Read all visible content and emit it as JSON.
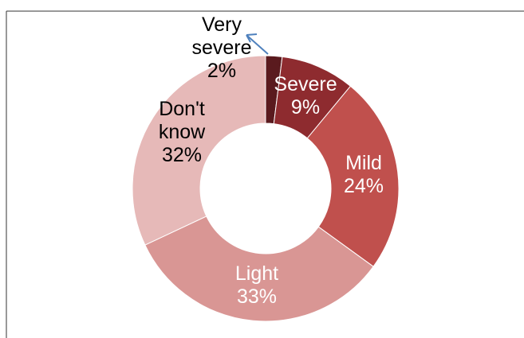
{
  "chart_data": {
    "type": "pie",
    "donut": true,
    "title": "",
    "slices": [
      {
        "label": "Very severe",
        "value": 2,
        "pct_text": "2%",
        "color": "#5a1a1e",
        "label_color": "#000000"
      },
      {
        "label": "Severe",
        "value": 9,
        "pct_text": "9%",
        "color": "#8e2b2f",
        "label_color": "#ffffff"
      },
      {
        "label": "Mild",
        "value": 24,
        "pct_text": "24%",
        "color": "#c0504d",
        "label_color": "#ffffff"
      },
      {
        "label": "Light",
        "value": 33,
        "pct_text": "33%",
        "color": "#d99694",
        "label_color": "#ffffff"
      },
      {
        "label": "Don't know",
        "value": 32,
        "pct_text": "32%",
        "color": "#e6b9b8",
        "label_color": "#000000"
      }
    ],
    "leader_line_color": "#4f81bd",
    "legend": "none"
  }
}
